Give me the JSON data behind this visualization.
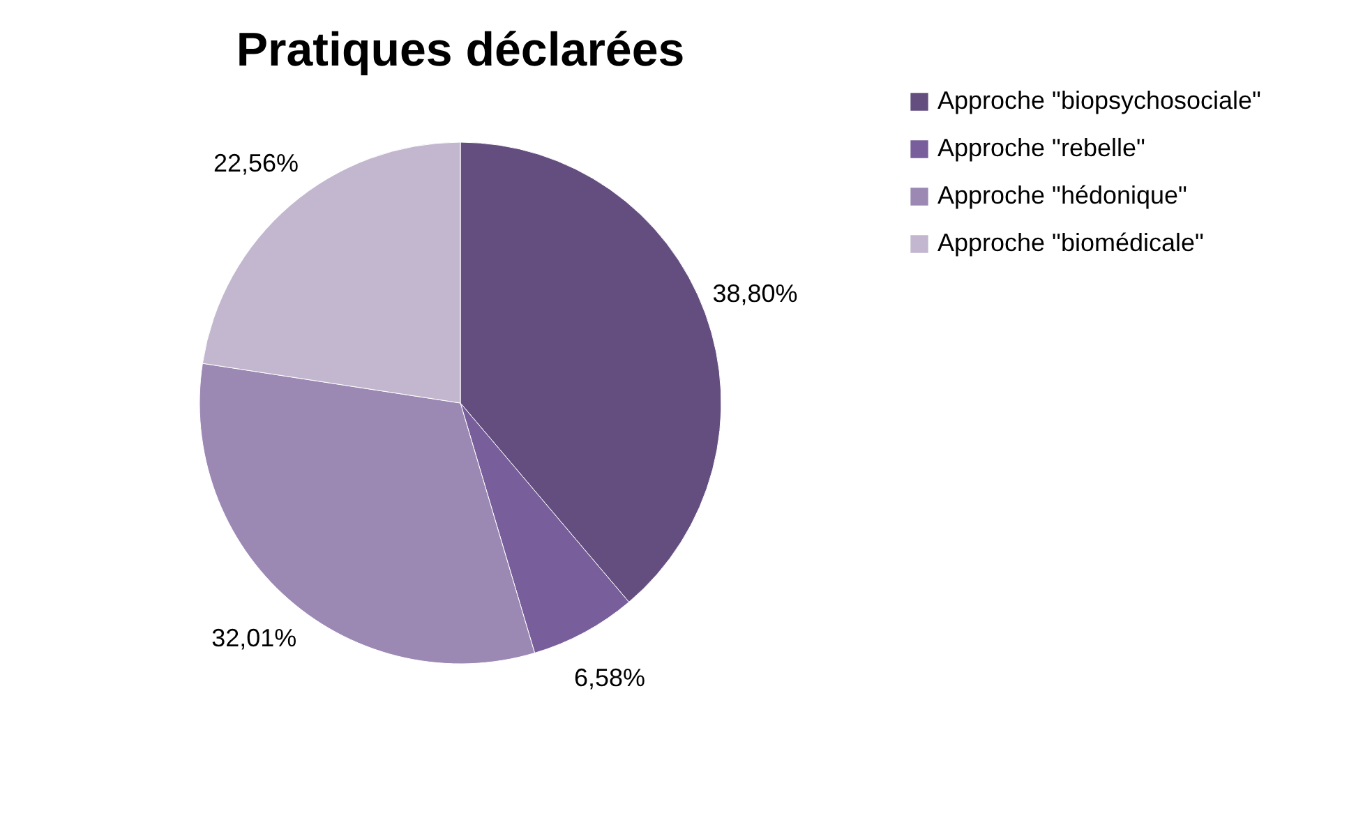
{
  "chart_data": {
    "type": "pie",
    "title": "Pratiques déclarées",
    "categories": [
      "Approche \"biopsychosociale\"",
      "Approche \"rebelle\"",
      "Approche \"hédonique\"",
      "Approche \"biomédicale\""
    ],
    "values": [
      38.8,
      6.58,
      32.01,
      22.56
    ],
    "value_labels": [
      "38,80%",
      "6,58%",
      "32,01%",
      "22,56%"
    ],
    "colors": [
      "#634e7f",
      "#785e9a",
      "#9b88b3",
      "#c2b7cf"
    ],
    "legend": "right"
  }
}
